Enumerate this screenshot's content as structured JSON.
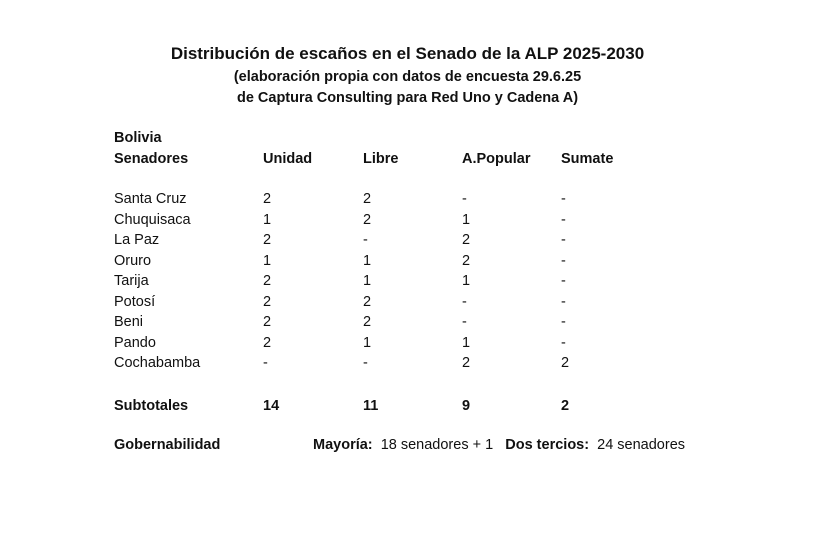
{
  "title": "Distribución de escaños en el Senado de la ALP 2025-2030",
  "subtitle_1": "(elaboración propia con datos de encuesta 29.6.25",
  "subtitle_2": "de Captura Consulting para Red Uno y Cadena A)",
  "table": {
    "country": "Bolivia",
    "headers": [
      "Senadores",
      "Unidad",
      "Libre",
      "A.Popular",
      "Sumate"
    ],
    "rows": [
      [
        "Santa Cruz",
        "2",
        "2",
        "-",
        "-"
      ],
      [
        "Chuquisaca",
        "1",
        "2",
        "1",
        "-"
      ],
      [
        "La Paz",
        "2",
        "-",
        "2",
        "-"
      ],
      [
        "Oruro",
        "1",
        "1",
        "2",
        "-"
      ],
      [
        "Tarija",
        "2",
        "1",
        "1",
        "-"
      ],
      [
        "Potosí",
        "2",
        "2",
        "-",
        "-"
      ],
      [
        "Beni",
        "2",
        "2",
        "-",
        "-"
      ],
      [
        "Pando",
        "2",
        "1",
        "1",
        "-"
      ],
      [
        "Cochabamba",
        "-",
        "-",
        "2",
        "2"
      ]
    ],
    "subtotals": [
      "Subtotales",
      "14",
      "11",
      "9",
      "2"
    ]
  },
  "governability": {
    "label": "Gobernabilidad",
    "majority_label": "Mayoría:",
    "majority_value": "18 senadores + 1",
    "two_thirds_label": "Dos tercios:",
    "two_thirds_value": "24 senadores"
  }
}
